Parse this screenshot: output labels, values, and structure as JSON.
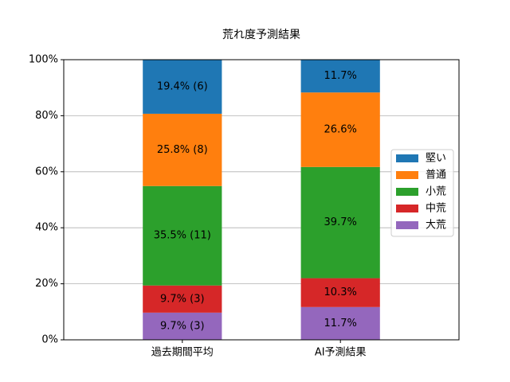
{
  "chart_data": {
    "type": "stacked_bar",
    "title": "荒れ度予測結果",
    "categories": [
      "過去期間平均",
      "AI予測結果"
    ],
    "series": [
      {
        "name": "堅い",
        "color": "#1f77b4",
        "values": [
          19.4,
          11.7
        ],
        "value_labels": [
          "19.4% (6)",
          "11.7%"
        ]
      },
      {
        "name": "普通",
        "color": "#ff7f0e",
        "values": [
          25.8,
          26.6
        ],
        "value_labels": [
          "25.8% (8)",
          "26.6%"
        ]
      },
      {
        "name": "小荒",
        "color": "#2ca02c",
        "values": [
          35.5,
          39.7
        ],
        "value_labels": [
          "35.5% (11)",
          "39.7%"
        ]
      },
      {
        "name": "中荒",
        "color": "#d62728",
        "values": [
          9.7,
          10.3
        ],
        "value_labels": [
          "9.7% (3)",
          "10.3%"
        ]
      },
      {
        "name": "大荒",
        "color": "#9467bd",
        "values": [
          9.7,
          11.7
        ],
        "value_labels": [
          "9.7% (3)",
          "11.7%"
        ]
      }
    ],
    "ylim": [
      0,
      100
    ],
    "yticks": [
      {
        "value": 0,
        "label": "0%"
      },
      {
        "value": 20,
        "label": "20%"
      },
      {
        "value": 40,
        "label": "40%"
      },
      {
        "value": 60,
        "label": "60%"
      },
      {
        "value": 80,
        "label": "80%"
      },
      {
        "value": 100,
        "label": "100%"
      }
    ],
    "grid": true,
    "legend": "right"
  }
}
